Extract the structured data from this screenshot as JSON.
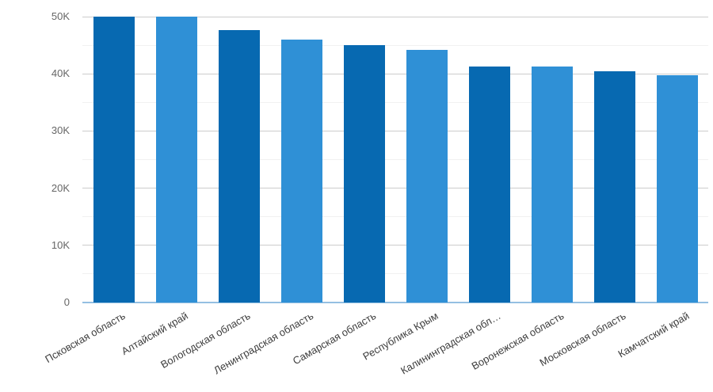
{
  "chart_data": {
    "type": "bar",
    "title": "",
    "xlabel": "",
    "ylabel": "",
    "legend": "none",
    "grid": "horizontal major + minor",
    "categories": [
      "Псковская область",
      "Алтайский край",
      "Вологодская область",
      "Ленинградская область",
      "Самарская область",
      "Республика Крым",
      "Калининградская обл…",
      "Воронежская область",
      "Московская область",
      "Камчатский край"
    ],
    "values": [
      50000,
      50000,
      47700,
      46000,
      45000,
      44200,
      41300,
      41300,
      40500,
      39800
    ],
    "ylim": [
      0,
      52000
    ],
    "y_ticks": [
      0,
      10000,
      20000,
      30000,
      40000,
      50000
    ],
    "y_tick_labels": [
      "0",
      "10K",
      "20K",
      "30K",
      "40K",
      "50K"
    ],
    "y_minor_ticks": [
      5000,
      15000,
      25000,
      35000,
      45000
    ],
    "x_label_rotation_deg": -30,
    "bar_color_pattern": [
      "dark",
      "light",
      "dark",
      "light",
      "dark",
      "light",
      "dark",
      "light",
      "dark",
      "light"
    ],
    "colors": {
      "palette": {
        "dark": "#0769B1",
        "light": "#2F90D6"
      },
      "major_grid": "#CCCCCC",
      "minor_grid": "#F1F1F1",
      "baseline": "#94BFE2",
      "y_label": "#666666",
      "x_label": "#3D3D3D",
      "background": "#FFFFFF"
    }
  }
}
